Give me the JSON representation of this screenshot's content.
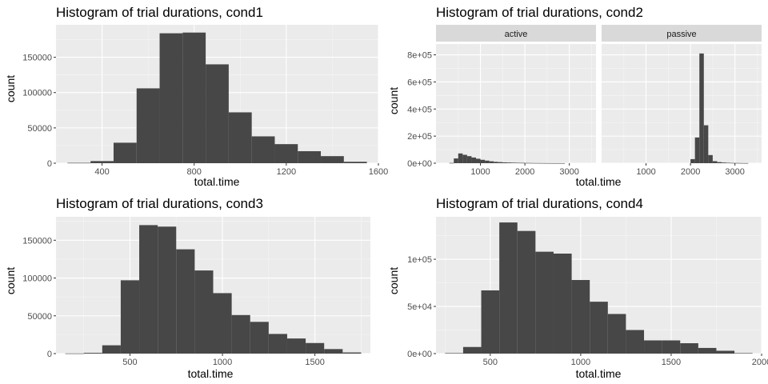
{
  "colors": {
    "panel_background": "#ebebeb",
    "grid_major": "#ffffff",
    "bar_fill": "#474747",
    "strip_background": "#d9d9d9",
    "tick_text": "#4d4d4d"
  },
  "chart_data": [
    {
      "type": "bar",
      "title": "Histogram of trial durations, cond1",
      "xlabel": "total.time",
      "ylabel": "count",
      "grid": true,
      "xlim": [
        200,
        1600
      ],
      "ylim": [
        0,
        196000
      ],
      "x_ticks": [
        400,
        800,
        1200,
        1600
      ],
      "x_tick_labels": [
        "400",
        "800",
        "1200",
        "1600"
      ],
      "y_ticks": [
        0,
        50000,
        100000,
        150000
      ],
      "y_tick_labels": [
        "0",
        "50000",
        "100000",
        "150000"
      ],
      "facets": [
        {
          "label": "",
          "bins": [
            {
              "x0": 250,
              "x1": 350,
              "count": 500
            },
            {
              "x0": 350,
              "x1": 450,
              "count": 3000
            },
            {
              "x0": 450,
              "x1": 550,
              "count": 29000
            },
            {
              "x0": 550,
              "x1": 650,
              "count": 106000
            },
            {
              "x0": 650,
              "x1": 750,
              "count": 184000
            },
            {
              "x0": 750,
              "x1": 850,
              "count": 185000
            },
            {
              "x0": 850,
              "x1": 950,
              "count": 140000
            },
            {
              "x0": 950,
              "x1": 1050,
              "count": 72000
            },
            {
              "x0": 1050,
              "x1": 1150,
              "count": 38000
            },
            {
              "x0": 1150,
              "x1": 1250,
              "count": 27000
            },
            {
              "x0": 1250,
              "x1": 1350,
              "count": 17000
            },
            {
              "x0": 1350,
              "x1": 1450,
              "count": 10000
            },
            {
              "x0": 1450,
              "x1": 1550,
              "count": 2000
            }
          ]
        }
      ]
    },
    {
      "type": "bar",
      "title": "Histogram of trial durations, cond2",
      "xlabel": "total.time",
      "ylabel": "count",
      "grid": true,
      "xlim": [
        0,
        3600
      ],
      "ylim": [
        0,
        880000
      ],
      "x_ticks": [
        1000,
        2000,
        3000
      ],
      "x_tick_labels": [
        "1000",
        "2000",
        "3000"
      ],
      "y_ticks": [
        0,
        200000,
        400000,
        600000,
        800000
      ],
      "y_tick_labels": [
        "0e+00",
        "2e+05",
        "4e+05",
        "6e+05",
        "8e+05"
      ],
      "facets": [
        {
          "label": "active",
          "bins": [
            {
              "x0": 300,
              "x1": 400,
              "count": 2000
            },
            {
              "x0": 400,
              "x1": 500,
              "count": 35000
            },
            {
              "x0": 500,
              "x1": 600,
              "count": 72000
            },
            {
              "x0": 600,
              "x1": 700,
              "count": 62000
            },
            {
              "x0": 700,
              "x1": 800,
              "count": 52000
            },
            {
              "x0": 800,
              "x1": 900,
              "count": 42000
            },
            {
              "x0": 900,
              "x1": 1000,
              "count": 33000
            },
            {
              "x0": 1000,
              "x1": 1100,
              "count": 25000
            },
            {
              "x0": 1100,
              "x1": 1200,
              "count": 19000
            },
            {
              "x0": 1200,
              "x1": 1300,
              "count": 14000
            },
            {
              "x0": 1300,
              "x1": 1400,
              "count": 10000
            },
            {
              "x0": 1400,
              "x1": 1500,
              "count": 8000
            },
            {
              "x0": 1500,
              "x1": 1600,
              "count": 6000
            },
            {
              "x0": 1600,
              "x1": 1700,
              "count": 5000
            },
            {
              "x0": 1700,
              "x1": 1800,
              "count": 4000
            },
            {
              "x0": 1800,
              "x1": 1900,
              "count": 3000
            },
            {
              "x0": 1900,
              "x1": 2000,
              "count": 2500
            },
            {
              "x0": 2000,
              "x1": 2100,
              "count": 2000
            },
            {
              "x0": 2100,
              "x1": 2200,
              "count": 1500
            },
            {
              "x0": 2200,
              "x1": 2300,
              "count": 1200
            },
            {
              "x0": 2300,
              "x1": 2400,
              "count": 1000
            },
            {
              "x0": 2400,
              "x1": 2500,
              "count": 800
            },
            {
              "x0": 2500,
              "x1": 2600,
              "count": 600
            },
            {
              "x0": 2600,
              "x1": 2700,
              "count": 500
            },
            {
              "x0": 2700,
              "x1": 2800,
              "count": 400
            },
            {
              "x0": 2800,
              "x1": 2900,
              "count": 300
            }
          ]
        },
        {
          "label": "passive",
          "bins": [
            {
              "x0": 2000,
              "x1": 2100,
              "count": 30000
            },
            {
              "x0": 2100,
              "x1": 2200,
              "count": 190000
            },
            {
              "x0": 2200,
              "x1": 2300,
              "count": 810000
            },
            {
              "x0": 2300,
              "x1": 2400,
              "count": 280000
            },
            {
              "x0": 2400,
              "x1": 2500,
              "count": 60000
            },
            {
              "x0": 2500,
              "x1": 2600,
              "count": 15000
            },
            {
              "x0": 2600,
              "x1": 2700,
              "count": 8000
            },
            {
              "x0": 2700,
              "x1": 2800,
              "count": 5000
            },
            {
              "x0": 2800,
              "x1": 2900,
              "count": 3000
            },
            {
              "x0": 2900,
              "x1": 3000,
              "count": 2000
            },
            {
              "x0": 3000,
              "x1": 3100,
              "count": 1500
            },
            {
              "x0": 3100,
              "x1": 3200,
              "count": 1000
            },
            {
              "x0": 3200,
              "x1": 3300,
              "count": 800
            }
          ]
        }
      ]
    },
    {
      "type": "bar",
      "title": "Histogram of trial durations, cond3",
      "xlabel": "total.time",
      "ylabel": "count",
      "grid": true,
      "xlim": [
        100,
        1800
      ],
      "ylim": [
        0,
        181000
      ],
      "x_ticks": [
        500,
        1000,
        1500
      ],
      "x_tick_labels": [
        "500",
        "1000",
        "1500"
      ],
      "y_ticks": [
        0,
        50000,
        100000,
        150000
      ],
      "y_tick_labels": [
        "0",
        "50000",
        "100000",
        "150000"
      ],
      "facets": [
        {
          "label": "",
          "bins": [
            {
              "x0": 150,
              "x1": 250,
              "count": 200
            },
            {
              "x0": 250,
              "x1": 350,
              "count": 1000
            },
            {
              "x0": 350,
              "x1": 450,
              "count": 11000
            },
            {
              "x0": 450,
              "x1": 550,
              "count": 97000
            },
            {
              "x0": 550,
              "x1": 650,
              "count": 170000
            },
            {
              "x0": 650,
              "x1": 750,
              "count": 168000
            },
            {
              "x0": 750,
              "x1": 850,
              "count": 138000
            },
            {
              "x0": 850,
              "x1": 950,
              "count": 110000
            },
            {
              "x0": 950,
              "x1": 1050,
              "count": 80000
            },
            {
              "x0": 1050,
              "x1": 1150,
              "count": 51000
            },
            {
              "x0": 1150,
              "x1": 1250,
              "count": 42000
            },
            {
              "x0": 1250,
              "x1": 1350,
              "count": 26000
            },
            {
              "x0": 1350,
              "x1": 1450,
              "count": 20000
            },
            {
              "x0": 1450,
              "x1": 1550,
              "count": 14000
            },
            {
              "x0": 1550,
              "x1": 1650,
              "count": 6000
            },
            {
              "x0": 1650,
              "x1": 1750,
              "count": 1500
            }
          ]
        }
      ]
    },
    {
      "type": "bar",
      "title": "Histogram of trial durations, cond4",
      "xlabel": "total.time",
      "ylabel": "count",
      "grid": true,
      "xlim": [
        200,
        2000
      ],
      "ylim": [
        0,
        145000
      ],
      "x_ticks": [
        500,
        1000,
        1500,
        2000
      ],
      "x_tick_labels": [
        "500",
        "1000",
        "1500",
        "2000"
      ],
      "y_ticks": [
        0,
        50000,
        100000
      ],
      "y_tick_labels": [
        "0e+00",
        "5e+04",
        "1e+05"
      ],
      "facets": [
        {
          "label": "",
          "bins": [
            {
              "x0": 250,
              "x1": 350,
              "count": 500
            },
            {
              "x0": 350,
              "x1": 450,
              "count": 7000
            },
            {
              "x0": 450,
              "x1": 550,
              "count": 67000
            },
            {
              "x0": 550,
              "x1": 650,
              "count": 139000
            },
            {
              "x0": 650,
              "x1": 750,
              "count": 130000
            },
            {
              "x0": 750,
              "x1": 850,
              "count": 108000
            },
            {
              "x0": 850,
              "x1": 950,
              "count": 106000
            },
            {
              "x0": 950,
              "x1": 1050,
              "count": 78000
            },
            {
              "x0": 1050,
              "x1": 1150,
              "count": 55000
            },
            {
              "x0": 1150,
              "x1": 1250,
              "count": 42000
            },
            {
              "x0": 1250,
              "x1": 1350,
              "count": 25000
            },
            {
              "x0": 1350,
              "x1": 1450,
              "count": 14000
            },
            {
              "x0": 1450,
              "x1": 1550,
              "count": 14000
            },
            {
              "x0": 1550,
              "x1": 1650,
              "count": 11000
            },
            {
              "x0": 1650,
              "x1": 1750,
              "count": 6000
            },
            {
              "x0": 1750,
              "x1": 1850,
              "count": 3000
            },
            {
              "x0": 1850,
              "x1": 1950,
              "count": 500
            }
          ]
        }
      ]
    }
  ]
}
